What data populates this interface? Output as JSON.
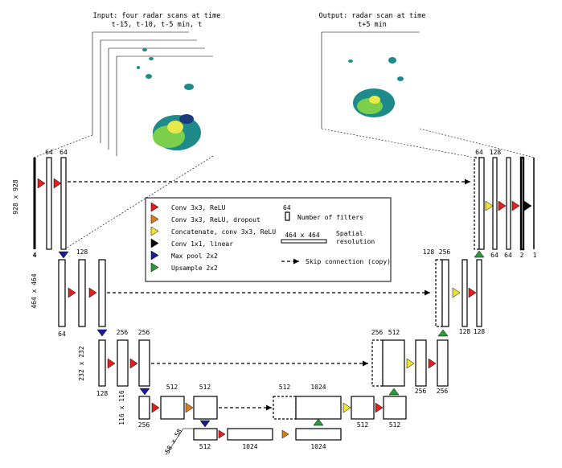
{
  "input_title": [
    "Input: four radar scans at time",
    "t-15, t-10, t-5 min, t"
  ],
  "output_title": [
    "Output: radar scan at time",
    "t+5 min"
  ],
  "level1": {
    "dim_label": "928 x 928",
    "channels_in": "4",
    "filters_a": "64",
    "filters_b": "64",
    "dec_concat": "64",
    "dec_concat2": "128",
    "dec_out1": "64",
    "dec_out2": "64",
    "dec_out3": "2",
    "dec_out4": "1"
  },
  "level2": {
    "dim_label": "464 x 464",
    "filters_a": "128",
    "filters_bottom": "64",
    "dec_concat": "128",
    "dec_concat2": "256",
    "dec_out1": "128",
    "dec_out2": "128"
  },
  "level3": {
    "dim_label": "232 x 232",
    "filters_a": "256",
    "filters_b": "256",
    "filters_bottom": "128",
    "dec_concat": "256",
    "dec_concat2": "512",
    "dec_out1": "256",
    "dec_out2": "256"
  },
  "level4": {
    "dim_label": "116 x 116",
    "filters_a": "512",
    "filters_b": "512",
    "filters_bottom": "256",
    "dec_concat": "512",
    "dec_concat2": "1024",
    "dec_out1": "512",
    "dec_out2": "512"
  },
  "level5": {
    "dim_label": "58 x 58",
    "filters_a": "512",
    "filters_b": "1024",
    "filters_c": "1024"
  },
  "legend": {
    "items": [
      {
        "label": "Conv 3x3, ReLU",
        "color": "#e02020",
        "icon": "red-right-triangle"
      },
      {
        "label": "Conv 3x3, ReLU, dropout",
        "color": "#d87a1e",
        "icon": "orange-right-triangle"
      },
      {
        "label": "Concatenate, conv 3x3, ReLU",
        "color": "#f2e330",
        "icon": "yellow-right-triangle"
      },
      {
        "label": "Conv 1x1, linear",
        "color": "#000000",
        "icon": "black-right-triangle"
      },
      {
        "label": "Max pool 2x2",
        "color": "#1c1c9a",
        "icon": "blue-down-triangle"
      },
      {
        "label": "Upsample 2x2",
        "color": "#2a9a3a",
        "icon": "green-up-triangle"
      }
    ],
    "filters_number": "64",
    "filters_label": "Number of filters",
    "resolution_value": "464 x 464",
    "resolution_label": [
      "Spatial",
      "resolution"
    ],
    "skip_label": "Skip connection (copy)"
  },
  "colors": {
    "radar_dark": "#1e3a78",
    "radar_mid": "#1f8a8a",
    "radar_light": "#7ccf4a",
    "radar_peak": "#e8e84a"
  }
}
